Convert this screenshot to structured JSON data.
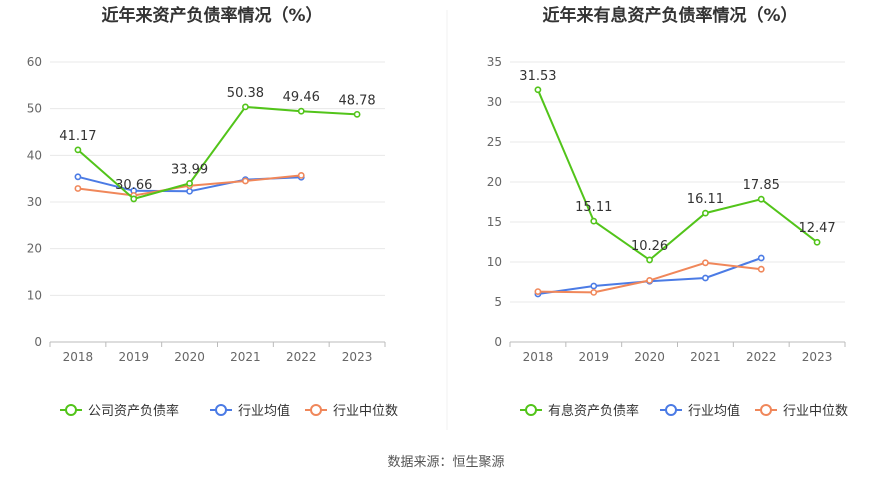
{
  "source": "数据来源：恒生聚源",
  "chart_data": [
    {
      "type": "line",
      "title": "近年来资产负债率情况（%）",
      "categories": [
        "2018",
        "2019",
        "2020",
        "2021",
        "2022",
        "2023"
      ],
      "ylim": [
        0,
        60
      ],
      "yticks": [
        0,
        10,
        20,
        30,
        40,
        50,
        60
      ],
      "grid": true,
      "legend_position": "bottom",
      "series": [
        {
          "name": "公司资产负债率",
          "color": "#52c41a",
          "values": [
            41.17,
            30.66,
            33.99,
            50.38,
            49.46,
            48.78
          ],
          "labels": [
            "41.17",
            "30.66",
            "33.99",
            "50.38",
            "49.46",
            "48.78"
          ]
        },
        {
          "name": "行业均值",
          "color": "#4b7be5",
          "values": [
            35.4,
            32.4,
            32.3,
            34.8,
            35.3,
            null
          ]
        },
        {
          "name": "行业中位数",
          "color": "#f0875a",
          "values": [
            32.9,
            31.4,
            33.5,
            34.5,
            35.7,
            null
          ]
        }
      ]
    },
    {
      "type": "line",
      "title": "近年来有息资产负债率情况（%）",
      "categories": [
        "2018",
        "2019",
        "2020",
        "2021",
        "2022",
        "2023"
      ],
      "ylim": [
        0,
        35
      ],
      "yticks": [
        0,
        5,
        10,
        15,
        20,
        25,
        30,
        35
      ],
      "grid": true,
      "legend_position": "bottom",
      "series": [
        {
          "name": "有息资产负债率",
          "color": "#52c41a",
          "values": [
            31.53,
            15.11,
            10.26,
            16.11,
            17.85,
            12.47
          ],
          "labels": [
            "31.53",
            "15.11",
            "10.26",
            "16.11",
            "17.85",
            "12.47"
          ]
        },
        {
          "name": "行业均值",
          "color": "#4b7be5",
          "values": [
            6.0,
            7.0,
            7.6,
            8.0,
            10.5,
            null
          ]
        },
        {
          "name": "行业中位数",
          "color": "#f0875a",
          "values": [
            6.3,
            6.2,
            7.7,
            9.9,
            9.1,
            null
          ]
        }
      ]
    }
  ]
}
